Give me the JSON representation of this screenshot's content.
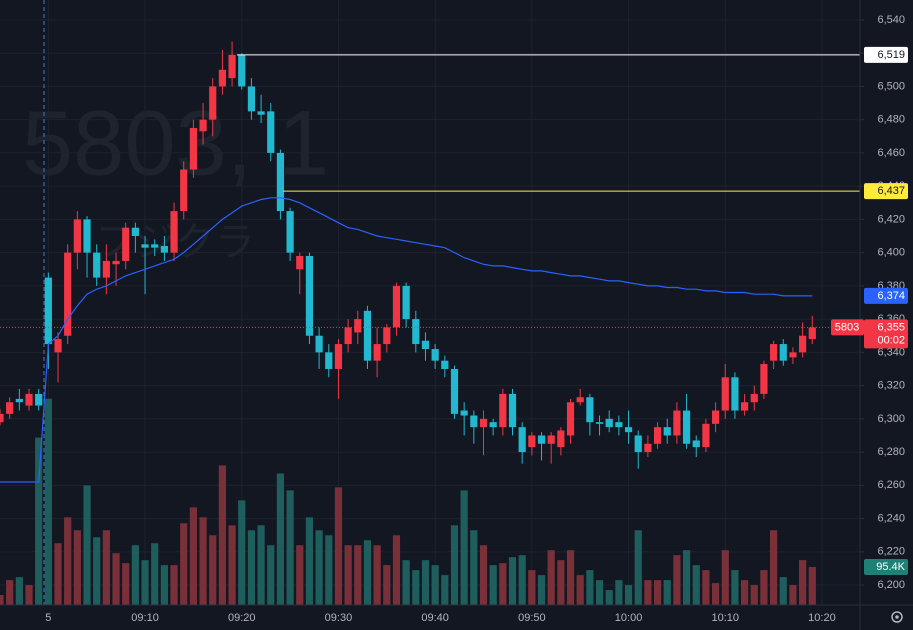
{
  "chart_data": {
    "type": "candlestick",
    "watermark": "5803, 1",
    "watermark_name": "フジクラ",
    "symbol": "5803",
    "countdown": "00:02",
    "categories": [
      null,
      null,
      null,
      null,
      null,
      "5",
      null,
      null,
      null,
      null,
      null,
      null,
      null,
      null,
      null,
      "09:10",
      null,
      null,
      null,
      null,
      null,
      null,
      null,
      null,
      null,
      "09:20",
      null,
      null,
      null,
      null,
      null,
      null,
      null,
      null,
      null,
      "09:30",
      null,
      null,
      null,
      null,
      null,
      null,
      null,
      null,
      null,
      "09:40",
      null,
      null,
      null,
      null,
      null,
      null,
      null,
      null,
      null,
      "09:50",
      null,
      null,
      null,
      null,
      null,
      null,
      null,
      null,
      null,
      "10:00",
      null,
      null,
      null,
      null,
      null,
      null,
      null,
      null,
      null,
      "10:10",
      null,
      null,
      null,
      null,
      null,
      null,
      null,
      null,
      null,
      "10:20"
    ],
    "open": [
      6298,
      6303,
      6312,
      6308,
      6315,
      6385,
      6340,
      6350,
      6400,
      6420,
      6400,
      6385,
      6393,
      6395,
      6415,
      6405,
      6405,
      6404,
      6400,
      6425,
      6450,
      6473,
      6480,
      6500,
      6505,
      6519,
      6500,
      6485,
      6485,
      6460,
      6425,
      6390,
      6398,
      6350,
      6340,
      6330,
      6345,
      6352,
      6365,
      6335,
      6345,
      6355,
      6380,
      6360,
      6347,
      6342,
      6335,
      6330,
      6305,
      6302,
      6295,
      6298,
      6295,
      6315,
      6295,
      6283,
      6290,
      6285,
      6283,
      6290,
      6310,
      6313,
      6298,
      6300,
      6298,
      6295,
      6290,
      6280,
      6285,
      6295,
      6290,
      6305,
      6287,
      6283,
      6297,
      6305,
      6325,
      6305,
      6310,
      6315,
      6335,
      6345,
      6337,
      6340,
      6348,
      null
    ],
    "high": [
      6306,
      6313,
      6318,
      6318,
      6318,
      6388,
      6352,
      6405,
      6425,
      6422,
      6405,
      6405,
      6400,
      6418,
      6418,
      6410,
      6408,
      6410,
      6430,
      6455,
      6480,
      6490,
      6505,
      6522,
      6527,
      6520,
      6505,
      6495,
      6490,
      6462,
      6427,
      6400,
      6400,
      6355,
      6345,
      6348,
      6360,
      6365,
      6368,
      6355,
      6357,
      6382,
      6382,
      6365,
      6352,
      6345,
      6338,
      6332,
      6310,
      6305,
      6305,
      6300,
      6318,
      6318,
      6298,
      6292,
      6292,
      6292,
      6295,
      6312,
      6318,
      6315,
      6302,
      6305,
      6302,
      6305,
      6293,
      6290,
      6298,
      6300,
      6310,
      6315,
      6290,
      6300,
      6310,
      6333,
      6328,
      6315,
      6320,
      6335,
      6347,
      6348,
      6343,
      6358,
      6362,
      null
    ],
    "low": [
      6296,
      6300,
      6305,
      6305,
      6305,
      6330,
      6322,
      6345,
      6390,
      6385,
      6380,
      6375,
      6380,
      6390,
      6400,
      6375,
      6398,
      6395,
      6395,
      6420,
      6445,
      6465,
      6470,
      6495,
      6500,
      6498,
      6480,
      6478,
      6455,
      6420,
      6395,
      6375,
      6345,
      6330,
      6325,
      6312,
      6340,
      6345,
      6330,
      6325,
      6340,
      6350,
      6355,
      6340,
      6335,
      6330,
      6325,
      6300,
      6290,
      6285,
      6278,
      6290,
      6290,
      6290,
      6273,
      6278,
      6275,
      6273,
      6278,
      6285,
      6308,
      6290,
      6290,
      6292,
      6290,
      6285,
      6270,
      6277,
      6282,
      6285,
      6285,
      6282,
      6277,
      6280,
      6292,
      6300,
      6300,
      6302,
      6305,
      6312,
      6330,
      6332,
      6333,
      6337,
      6345,
      null
    ],
    "close": [
      6303,
      6310,
      6310,
      6315,
      6308,
      6345,
      6348,
      6400,
      6420,
      6400,
      6385,
      6395,
      6395,
      6415,
      6410,
      6403,
      6403,
      6400,
      6425,
      6450,
      6475,
      6480,
      6500,
      6510,
      6519,
      6500,
      6485,
      6483,
      6460,
      6425,
      6400,
      6398,
      6350,
      6340,
      6330,
      6345,
      6355,
      6360,
      6335,
      6345,
      6355,
      6380,
      6360,
      6345,
      6342,
      6335,
      6330,
      6303,
      6302,
      6295,
      6300,
      6295,
      6315,
      6295,
      6280,
      6290,
      6285,
      6290,
      6293,
      6310,
      6313,
      6298,
      6297,
      6295,
      6295,
      6292,
      6280,
      6285,
      6295,
      6290,
      6305,
      6285,
      6283,
      6297,
      6305,
      6325,
      6305,
      6310,
      6315,
      6333,
      6345,
      6335,
      6340,
      6350,
      6355,
      null
    ],
    "close_label": "6,355",
    "volume": [
      25000,
      62500,
      70000,
      50000,
      420000,
      517500,
      155000,
      220000,
      187500,
      300000,
      170000,
      187500,
      130000,
      105000,
      150000,
      112500,
      155000,
      100000,
      100000,
      205000,
      245000,
      220000,
      175000,
      350000,
      200000,
      262500,
      187500,
      200000,
      150000,
      330000,
      287500,
      150000,
      220000,
      187500,
      175000,
      295000,
      150000,
      150000,
      162500,
      150000,
      100000,
      175000,
      112500,
      87500,
      112500,
      100000,
      75000,
      200000,
      287500,
      187500,
      150000,
      100000,
      105000,
      120000,
      125000,
      87500,
      75000,
      137500,
      112500,
      137500,
      75000,
      87500,
      62500,
      37500,
      62500,
      50000,
      187500,
      62500,
      62500,
      62500,
      125000,
      137500,
      100000,
      87500,
      55000,
      137500,
      87500,
      62500,
      50000,
      87500,
      187500,
      70000,
      50000,
      112500,
      95400,
      null
    ],
    "volume_label": "95.4K",
    "volume_lim": [
      0,
      577000
    ],
    "ma": {
      "color": "#2962ff",
      "label": "6,374",
      "values": [
        6262,
        6262,
        6262,
        6262,
        6262,
        6345,
        6350,
        6360,
        6368,
        6375,
        6378,
        6380,
        6383,
        6386,
        6388,
        6390,
        6392,
        6394,
        6396,
        6400,
        6405,
        6410,
        6415,
        6420,
        6424,
        6428,
        6430,
        6432,
        6433,
        6433,
        6432,
        6430,
        6427,
        6424,
        6421,
        6418,
        6415,
        6414,
        6412,
        6410,
        6409,
        6408,
        6407,
        6406,
        6405,
        6404,
        6403,
        6400,
        6397,
        6395,
        6393,
        6392,
        6392,
        6391,
        6390,
        6389,
        6389,
        6388,
        6387,
        6386,
        6386,
        6385,
        6384,
        6383,
        6383,
        6382,
        6381,
        6380,
        6380,
        6379,
        6379,
        6378,
        6378,
        6377,
        6377,
        6376,
        6376,
        6376,
        6375,
        6375,
        6375,
        6374,
        6374,
        6374,
        6374,
        null
      ]
    },
    "levels": [
      {
        "value": 6519,
        "label": "6,519",
        "color": "#ffffff"
      },
      {
        "value": 6437,
        "label": "6,437",
        "color": "#ffeb3b"
      }
    ],
    "up_color": "#f23645",
    "down_color": "#22b8cf",
    "up_volume_color": "#7a3039",
    "down_volume_color": "#1e5e5d",
    "ylim": [
      6188,
      6552
    ],
    "yticks": [
      {
        "value": 6200,
        "label": "6,200"
      },
      {
        "value": 6220,
        "label": "6,220"
      },
      {
        "value": 6240,
        "label": "6,240"
      },
      {
        "value": 6260,
        "label": "6,260"
      },
      {
        "value": 6280,
        "label": "6,280"
      },
      {
        "value": 6300,
        "label": "6,300"
      },
      {
        "value": 6320,
        "label": "6,320"
      },
      {
        "value": 6340,
        "label": "6,340"
      },
      {
        "value": 6360,
        "label": "6,360"
      },
      {
        "value": 6380,
        "label": "6,380"
      },
      {
        "value": 6400,
        "label": "6,400"
      },
      {
        "value": 6420,
        "label": "6,420"
      },
      {
        "value": 6440,
        "label": "6,440"
      },
      {
        "value": 6460,
        "label": "6,460"
      },
      {
        "value": 6480,
        "label": "6,480"
      },
      {
        "value": 6500,
        "label": "6,500"
      },
      {
        "value": 6520,
        "label": "6,520"
      },
      {
        "value": 6540,
        "label": "6,540"
      }
    ],
    "grid": true
  }
}
